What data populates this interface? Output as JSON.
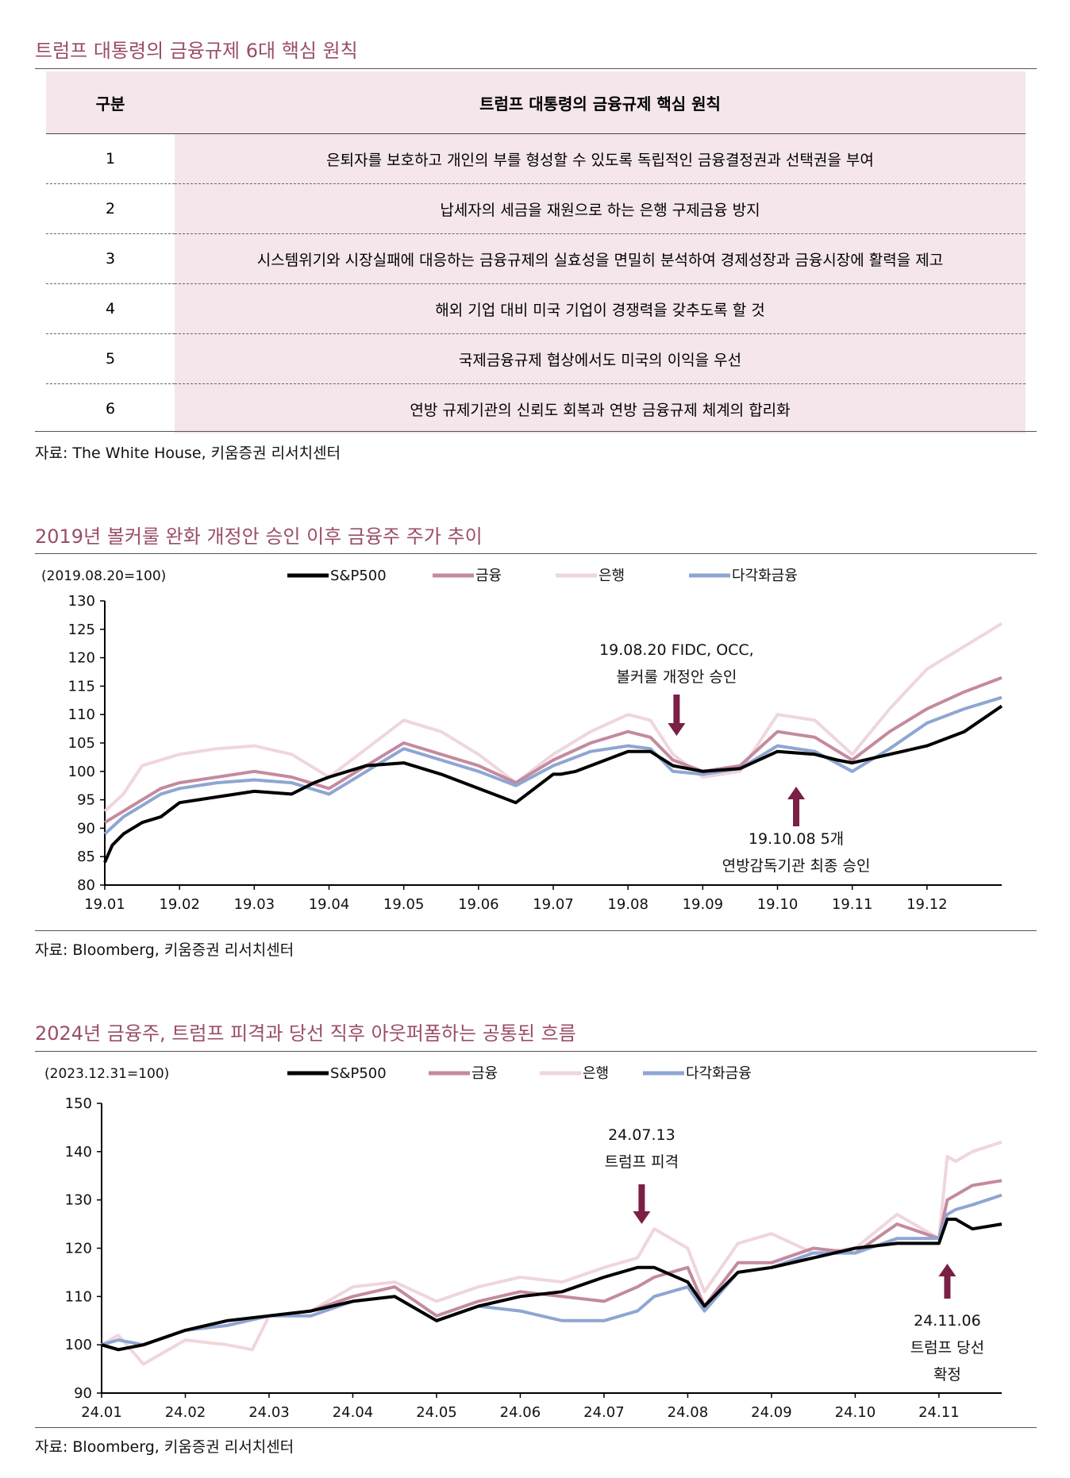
{
  "section1": {
    "title": "트럼프 대통령의 금융규제 6대 핵심 원칙",
    "header": [
      "구분",
      "트럼프 대통령의 금융규제 핵심 원칙"
    ],
    "rows": [
      {
        "num": "1",
        "text": "은퇴자를 보호하고 개인의 부를 형성할 수 있도록 독립적인 금융결정권과 선택권을 부여"
      },
      {
        "num": "2",
        "text": "납세자의 세금을 재원으로 하는 은행 구제금융 방지"
      },
      {
        "num": "3",
        "text": "시스템위기와 시장실패에 대응하는 금융규제의 실효성을 면밀히 분석하여 경제성장과 금융시장에 활력을 제고"
      },
      {
        "num": "4",
        "text": "해외 기업 대비 미국 기업이 경쟁력을 갖추도록 할 것"
      },
      {
        "num": "5",
        "text": "국제금융규제 협상에서도 미국의 이익을 우선"
      },
      {
        "num": "6",
        "text": "연방 규제기관의 신뢰도 회복과 연방 금융규제 체계의 합리화"
      }
    ],
    "source": "자료: The White House, 키움증권 리서치센터"
  },
  "section2": {
    "title": "2019년 볼커룰 완화 개정안 승인 이후 금융주 주가 추이",
    "source": "자료: Bloomberg, 키움증권 리서치센터"
  },
  "section3": {
    "title": "2024년 금융주, 트럼프 피격과 당선 직후 아웃퍼폼하는 공통된 흐름",
    "source": "자료: Bloomberg, 키움증권 리서치센터"
  },
  "chart_data": [
    {
      "type": "line",
      "base_label": "(2019.08.20=100)",
      "ylim": [
        80,
        130
      ],
      "yticks": [
        80,
        85,
        90,
        95,
        100,
        105,
        110,
        115,
        120,
        125,
        130
      ],
      "xtick_labels": [
        "19.01",
        "19.02",
        "19.03",
        "19.04",
        "19.05",
        "19.06",
        "19.07",
        "19.08",
        "19.09",
        "19.10",
        "19.11",
        "19.12"
      ],
      "x_months": [
        0,
        12
      ],
      "legend": [
        "S&P500",
        "금융",
        "은행",
        "다각화금융"
      ],
      "colors": [
        "#000000",
        "#c48a9e",
        "#efd6dd",
        "#8ea6d2"
      ],
      "series": [
        {
          "name": "S&P500",
          "x": [
            0,
            0.1,
            0.25,
            0.5,
            0.75,
            1,
            1.25,
            1.5,
            2,
            2.5,
            2.8,
            3,
            3.5,
            4,
            4.5,
            5,
            5.5,
            6,
            6.1,
            6.3,
            6.7,
            7,
            7.3,
            7.6,
            8,
            8.5,
            9,
            9.5,
            9.8,
            10,
            10.5,
            11,
            11.5,
            12
          ],
          "values": [
            84,
            87,
            89,
            91,
            92,
            94.5,
            95,
            95.5,
            96.5,
            96,
            98,
            99,
            101,
            101.5,
            99.5,
            97,
            94.5,
            99.5,
            99.5,
            100,
            102,
            103.5,
            103.5,
            101,
            100,
            100.5,
            103.5,
            103,
            102,
            101.5,
            103,
            104.5,
            107,
            111.5
          ]
        },
        {
          "name": "금융",
          "x": [
            0,
            0.25,
            0.5,
            0.75,
            1,
            1.5,
            2,
            2.5,
            3,
            3.5,
            4,
            4.5,
            5,
            5.5,
            6,
            6.5,
            7,
            7.3,
            7.6,
            8,
            8.5,
            9,
            9.5,
            10,
            10.5,
            11,
            11.5,
            12
          ],
          "values": [
            91,
            93,
            95,
            97,
            98,
            99,
            100,
            99,
            97,
            101,
            105,
            103,
            101,
            98,
            102,
            105,
            107,
            106,
            102,
            100,
            101,
            107,
            106,
            102,
            107,
            111,
            114,
            116.5
          ]
        },
        {
          "name": "은행",
          "x": [
            0,
            0.25,
            0.5,
            1,
            1.5,
            2,
            2.5,
            3,
            3.5,
            4,
            4.5,
            5,
            5.5,
            6,
            6.5,
            7,
            7.3,
            7.6,
            8,
            8.5,
            9,
            9.5,
            10,
            10.5,
            11,
            11.5,
            12
          ],
          "values": [
            93,
            96,
            101,
            103,
            104,
            104.5,
            103,
            99,
            104,
            109,
            107,
            103,
            98,
            103,
            107,
            110,
            109,
            103,
            99,
            100,
            110,
            109,
            103,
            111,
            118,
            122,
            126
          ]
        },
        {
          "name": "다각화금융",
          "x": [
            0,
            0.25,
            0.5,
            0.75,
            1,
            1.5,
            2,
            2.5,
            3,
            3.5,
            4,
            4.5,
            5,
            5.5,
            6,
            6.5,
            7,
            7.3,
            7.6,
            8,
            8.5,
            9,
            9.5,
            10,
            10.5,
            11,
            11.5,
            12
          ],
          "values": [
            89,
            92,
            94,
            96,
            97,
            98,
            98.5,
            98,
            96,
            100,
            104,
            102,
            100,
            97.5,
            101,
            103.5,
            104.5,
            104,
            100,
            99.5,
            100.5,
            104.5,
            103.5,
            100,
            104,
            108.5,
            111,
            113
          ]
        }
      ],
      "annotations": [
        {
          "text1": "19.08.20 FIDC, OCC,",
          "text2": "볼커룰 개정안 승인",
          "x_month": 7.65,
          "arrow": "down"
        },
        {
          "text1": "19.10.08 5개",
          "text2": "연방감독기관 최종 승인",
          "x_month": 9.25,
          "arrow": "up"
        }
      ]
    },
    {
      "type": "line",
      "base_label": "(2023.12.31=100)",
      "ylim": [
        90,
        150
      ],
      "yticks": [
        90,
        100,
        110,
        120,
        130,
        140,
        150
      ],
      "xtick_labels": [
        "24.01",
        "24.02",
        "24.03",
        "24.04",
        "24.05",
        "24.06",
        "24.07",
        "24.08",
        "24.09",
        "24.10",
        "24.11"
      ],
      "x_months": [
        0,
        10.75
      ],
      "legend": [
        "S&P500",
        "금융",
        "은행",
        "다각화금융"
      ],
      "colors": [
        "#000000",
        "#c48a9e",
        "#efd6dd",
        "#8ea6d2"
      ],
      "series": [
        {
          "name": "S&P500",
          "x": [
            0,
            0.2,
            0.5,
            1,
            1.5,
            2,
            2.5,
            3,
            3.5,
            4,
            4.5,
            5,
            5.5,
            6,
            6.4,
            6.6,
            7,
            7.2,
            7.6,
            8,
            8.5,
            9,
            9.5,
            10,
            10.1,
            10.2,
            10.4,
            10.75
          ],
          "values": [
            100,
            99,
            100,
            103,
            105,
            106,
            107,
            109,
            110,
            105,
            108,
            110,
            111,
            114,
            116,
            116,
            113,
            108,
            115,
            116,
            118,
            120,
            121,
            121,
            126,
            126,
            124,
            125
          ]
        },
        {
          "name": "금융",
          "x": [
            0,
            0.2,
            0.5,
            1,
            1.5,
            2,
            2.5,
            3,
            3.5,
            4,
            4.5,
            5,
            5.5,
            6,
            6.4,
            6.6,
            7,
            7.2,
            7.6,
            8,
            8.5,
            9,
            9.5,
            10,
            10.1,
            10.2,
            10.4,
            10.75
          ],
          "values": [
            100,
            99,
            100,
            103,
            104,
            106,
            107,
            110,
            112,
            106,
            109,
            111,
            110,
            109,
            112,
            114,
            116,
            108,
            117,
            117,
            120,
            119,
            125,
            122,
            130,
            131,
            133,
            134
          ]
        },
        {
          "name": "은행",
          "x": [
            0,
            0.2,
            0.5,
            1,
            1.5,
            1.8,
            2,
            2.5,
            3,
            3.5,
            4,
            4.5,
            5,
            5.5,
            6,
            6.4,
            6.6,
            7,
            7.2,
            7.6,
            8,
            8.5,
            9,
            9.5,
            10,
            10.1,
            10.2,
            10.4,
            10.75
          ],
          "values": [
            100,
            102,
            96,
            101,
            100,
            99,
            106,
            107,
            112,
            113,
            109,
            112,
            114,
            113,
            116,
            118,
            124,
            120,
            111,
            121,
            123,
            119,
            120,
            127,
            122,
            139,
            138,
            140,
            142
          ]
        },
        {
          "name": "다각화금융",
          "x": [
            0,
            0.2,
            0.5,
            1,
            1.5,
            2,
            2.5,
            3,
            3.5,
            4,
            4.5,
            5,
            5.5,
            6,
            6.4,
            6.6,
            7,
            7.2,
            7.6,
            8,
            8.5,
            9,
            9.5,
            10,
            10.1,
            10.2,
            10.4,
            10.75
          ],
          "values": [
            100,
            101,
            100,
            103,
            104,
            106,
            106,
            109,
            110,
            105,
            108,
            107,
            105,
            105,
            107,
            110,
            112,
            107,
            115,
            116,
            119,
            119,
            122,
            122,
            127,
            128,
            129,
            131
          ]
        }
      ],
      "annotations": [
        {
          "text1": "24.07.13",
          "text2": "트럼프 피격",
          "x_month": 6.45,
          "arrow": "down"
        },
        {
          "text1": "24.11.06",
          "text2": "트럼프 당선",
          "text3": "확정",
          "x_month": 10.1,
          "arrow": "up"
        }
      ]
    }
  ]
}
